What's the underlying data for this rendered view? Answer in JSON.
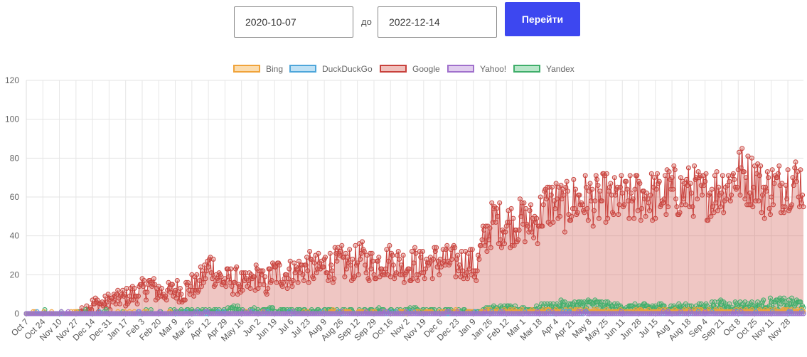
{
  "form": {
    "from_value": "2020-10-07",
    "separator": "до",
    "to_value": "2022-12-14",
    "go_label": "Перейти"
  },
  "colors": {
    "button": "#3d47f0"
  },
  "legend": [
    {
      "label": "Bing",
      "border": "#f0a33a",
      "fill": "#fbdcae"
    },
    {
      "label": "DuckDuckGo",
      "border": "#4ea6da",
      "fill": "#bfe1f5"
    },
    {
      "label": "Google",
      "border": "#c8413c",
      "fill": "#f0c0bc"
    },
    {
      "label": "Yahoo!",
      "border": "#a070cc",
      "fill": "#e0cdee"
    },
    {
      "label": "Yandex",
      "border": "#3fae6a",
      "fill": "#b8e6c9"
    }
  ],
  "chart_data": {
    "type": "area",
    "x_start": "2020-10-07",
    "x_end": "2022-12-14",
    "ylim": [
      0,
      120
    ],
    "yticks": [
      0,
      20,
      40,
      60,
      80,
      100,
      120
    ],
    "grid": true,
    "legend_position": "top",
    "xtick_labels": [
      "Oct 7",
      "Oct 24",
      "Nov 10",
      "Nov 27",
      "Dec 14",
      "Dec 31",
      "Jan 17",
      "Feb 3",
      "Feb 20",
      "Mar 9",
      "Mar 26",
      "Apr 12",
      "Apr 29",
      "May 16",
      "Jun 2",
      "Jun 19",
      "Jul 6",
      "Jul 23",
      "Aug 9",
      "Aug 26",
      "Sep 12",
      "Sep 29",
      "Oct 16",
      "Nov 2",
      "Nov 19",
      "Dec 6",
      "Dec 23",
      "Jan 9",
      "Jan 26",
      "Feb 12",
      "Mar 1",
      "Mar 18",
      "Apr 4",
      "Apr 21",
      "May 8",
      "May 25",
      "Jun 11",
      "Jun 28",
      "Jul 15",
      "Aug 1",
      "Aug 18",
      "Sep 4",
      "Sep 21",
      "Oct 8",
      "Oct 25",
      "Nov 11",
      "Nov 28"
    ],
    "series": [
      {
        "name": "Google",
        "color": "#c8413c",
        "fill": "rgba(214,105,98,0.38)",
        "weekly": [
          0,
          0,
          0,
          0,
          0,
          0,
          0,
          0,
          1,
          3,
          5,
          5,
          6,
          7,
          8,
          9,
          10,
          12,
          15,
          12,
          11,
          11,
          12,
          11,
          14,
          14,
          19,
          26,
          19,
          17,
          17,
          17,
          14,
          16,
          20,
          14,
          20,
          21,
          20,
          21,
          22,
          24,
          23,
          23,
          25,
          25,
          26,
          26,
          25,
          29,
          26,
          24,
          27,
          27,
          27,
          25,
          24,
          26,
          24,
          26,
          27,
          27,
          27,
          26,
          26,
          27,
          22,
          36,
          45,
          48,
          45,
          46,
          47,
          48,
          46,
          48,
          55,
          57,
          56,
          54,
          58,
          58,
          59,
          58,
          58,
          60,
          56,
          60,
          57,
          59,
          60,
          61,
          60,
          60,
          62,
          63,
          62,
          63,
          63,
          60,
          62,
          63,
          65,
          66,
          70,
          72,
          68,
          71,
          62,
          64,
          65,
          66,
          68,
          68,
          66
        ]
      },
      {
        "name": "Yandex",
        "color": "#3fae6a",
        "fill": "rgba(120,190,140,0.30)",
        "weekly": [
          0,
          0,
          0,
          0,
          0,
          0,
          0,
          0,
          0,
          0,
          0,
          0,
          0,
          0,
          0,
          0,
          0,
          0,
          0,
          0,
          0,
          0,
          1,
          1,
          1,
          1,
          1,
          1,
          1,
          1,
          2,
          2,
          1,
          1,
          2,
          1,
          2,
          1,
          1,
          1,
          1,
          1,
          1,
          1,
          1,
          1,
          1,
          1,
          1,
          1,
          1,
          1,
          2,
          1,
          1,
          1,
          1,
          2,
          1,
          1,
          1,
          1,
          1,
          1,
          1,
          1,
          1,
          1,
          2,
          2,
          2,
          2,
          2,
          2,
          2,
          2,
          3,
          3,
          4,
          4,
          4,
          4,
          5,
          5,
          4,
          4,
          3,
          3,
          3,
          3,
          3,
          3,
          3,
          3,
          3,
          3,
          3,
          3,
          3,
          3,
          4,
          4,
          4,
          4,
          4,
          4,
          4,
          4,
          4,
          5,
          5,
          5,
          5,
          5,
          5
        ]
      },
      {
        "name": "Bing",
        "color": "#f0a33a",
        "fill": "rgba(240,163,58,0.25)",
        "weekly": [
          0,
          0,
          0,
          0,
          0,
          0,
          0,
          0,
          0,
          0,
          0,
          0,
          0,
          0,
          0,
          0,
          0,
          0,
          0,
          0,
          0,
          0,
          0,
          0,
          0,
          0,
          0,
          0,
          0,
          0,
          0,
          0,
          0,
          0,
          0,
          0,
          0,
          0,
          0,
          0,
          0,
          0,
          0,
          0,
          0,
          1,
          0,
          1,
          0,
          1,
          0,
          1,
          0,
          1,
          0,
          1,
          0,
          1,
          0,
          1,
          0,
          1,
          0,
          1,
          0,
          1,
          0,
          1,
          1,
          1,
          1,
          1,
          1,
          1,
          1,
          1,
          1,
          1,
          1,
          1,
          1,
          1,
          1,
          1,
          1,
          1,
          1,
          1,
          1,
          1,
          1,
          1,
          1,
          1,
          1,
          1,
          1,
          1,
          1,
          1,
          1,
          1,
          1,
          1,
          1,
          1,
          1,
          1,
          1,
          1,
          1,
          1,
          1,
          1,
          1
        ]
      },
      {
        "name": "DuckDuckGo",
        "color": "#4ea6da",
        "fill": "rgba(78,166,218,0.20)",
        "weekly": [
          0,
          0,
          0,
          0,
          0,
          0,
          0,
          0,
          0,
          0,
          0,
          0,
          0,
          0,
          0,
          0,
          0,
          0,
          0,
          0,
          0,
          0,
          0,
          0,
          0,
          0,
          0,
          0,
          0,
          0,
          0,
          0,
          0,
          0,
          0,
          0,
          0,
          0,
          0,
          0,
          0,
          0,
          0,
          0,
          0,
          0,
          0,
          0,
          0,
          0,
          0,
          0,
          0,
          0,
          0,
          0,
          0,
          0,
          0,
          0,
          0,
          0,
          0,
          0,
          0,
          0,
          0,
          0,
          0,
          0,
          0,
          0,
          0,
          0,
          0,
          0,
          0,
          0,
          0,
          0,
          0,
          0,
          0,
          0,
          0,
          0,
          0,
          0,
          0,
          0,
          0,
          0,
          0,
          0,
          0,
          0,
          0,
          0,
          0,
          0,
          0,
          0,
          0,
          0,
          0,
          0,
          0,
          0,
          0,
          0,
          0,
          0,
          0,
          0,
          0
        ]
      },
      {
        "name": "Yahoo!",
        "color": "#a070cc",
        "fill": "rgba(160,112,204,0.20)",
        "weekly": [
          0,
          0,
          0,
          0,
          0,
          0,
          0,
          0,
          0,
          0,
          0,
          0,
          0,
          0,
          0,
          0,
          0,
          0,
          0,
          0,
          0,
          0,
          0,
          0,
          0,
          0,
          0,
          0,
          0,
          0,
          0,
          0,
          0,
          0,
          0,
          0,
          0,
          0,
          0,
          0,
          0,
          0,
          0,
          0,
          0,
          0,
          0,
          0,
          0,
          0,
          0,
          0,
          0,
          0,
          0,
          0,
          0,
          0,
          0,
          0,
          0,
          0,
          0,
          0,
          0,
          0,
          0,
          0,
          0,
          0,
          0,
          0,
          0,
          0,
          0,
          0,
          0,
          0,
          0,
          0,
          0,
          0,
          0,
          0,
          0,
          0,
          0,
          0,
          0,
          0,
          0,
          0,
          0,
          0,
          0,
          0,
          0,
          0,
          0,
          0,
          0,
          0,
          0,
          0,
          0,
          0,
          0,
          0,
          0,
          0,
          0,
          0,
          0,
          0,
          0
        ]
      }
    ]
  }
}
